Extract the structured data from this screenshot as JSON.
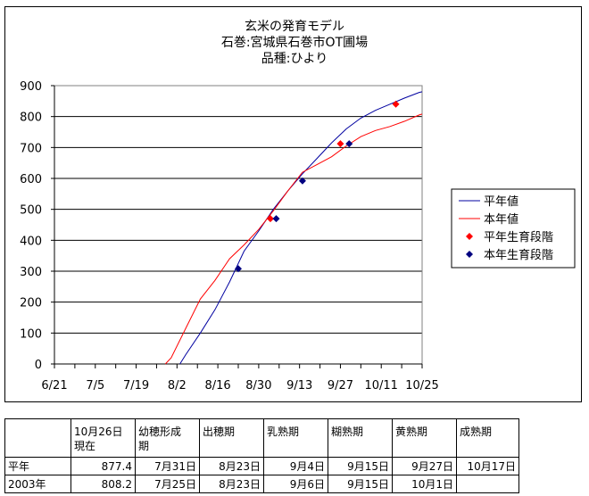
{
  "chart_data": {
    "type": "line",
    "title_lines": [
      "玄米の発育モデル",
      "石巻:宮城県石巻市OT圃場",
      "品種:ひより"
    ],
    "x_ticks": [
      "6/21",
      "7/5",
      "7/19",
      "8/2",
      "8/16",
      "8/30",
      "9/13",
      "9/27",
      "10/11",
      "10/25"
    ],
    "x_tick_days": [
      0,
      14,
      28,
      42,
      56,
      70,
      84,
      98,
      112,
      126
    ],
    "ylim": [
      0,
      900
    ],
    "y_ticks": [
      "0",
      "100",
      "200",
      "300",
      "400",
      "500",
      "600",
      "700",
      "800",
      "900"
    ],
    "grid": "horizontal",
    "legend_position": "right",
    "legend": [
      {
        "label": "平年値",
        "color": "#0000a0",
        "marker": "line"
      },
      {
        "label": "本年値",
        "color": "#ff0000",
        "marker": "line"
      },
      {
        "label": "平年生育段階",
        "color": "#ff0000",
        "marker": "diamond"
      },
      {
        "label": "本年生育段階",
        "color": "#000080",
        "marker": "diamond"
      }
    ],
    "series": [
      {
        "name": "平年値",
        "color": "#0000a0",
        "x": [
          43,
          45,
          50,
          55,
          60,
          65,
          70,
          75,
          80,
          85,
          90,
          95,
          100,
          105,
          110,
          115,
          120,
          125,
          126
        ],
        "y": [
          0,
          30,
          100,
          175,
          265,
          365,
          430,
          500,
          560,
          615,
          665,
          715,
          760,
          795,
          820,
          840,
          860,
          878,
          880
        ]
      },
      {
        "name": "本年値",
        "color": "#ff0000",
        "x": [
          38,
          40,
          45,
          50,
          55,
          60,
          65,
          70,
          75,
          80,
          85,
          90,
          95,
          100,
          105,
          110,
          115,
          120,
          125,
          126
        ],
        "y": [
          0,
          20,
          115,
          210,
          270,
          340,
          385,
          435,
          495,
          560,
          620,
          645,
          670,
          705,
          735,
          755,
          768,
          785,
          805,
          808
        ]
      },
      {
        "name": "平年生育段階",
        "color": "#ff0000",
        "marker": "diamond",
        "x": [
          74,
          98,
          117
        ],
        "y": [
          470,
          712,
          840
        ]
      },
      {
        "name": "本年生育段階",
        "color": "#000080",
        "marker": "diamond",
        "x": [
          63,
          76,
          85,
          101
        ],
        "y": [
          308,
          470,
          592,
          712
        ]
      }
    ]
  },
  "table": {
    "header": [
      "",
      "10月26日\n現在",
      "幼穂形成\n期",
      "出穂期",
      "乳熟期",
      "糊熟期",
      "黄熟期",
      "成熟期"
    ],
    "rows": [
      [
        "平年",
        "877.4",
        "7月31日",
        "8月23日",
        "9月4日",
        "9月15日",
        "9月27日",
        "10月17日"
      ],
      [
        "2003年",
        "808.2",
        "7月25日",
        "8月23日",
        "9月6日",
        "9月15日",
        "10月1日",
        ""
      ]
    ]
  }
}
